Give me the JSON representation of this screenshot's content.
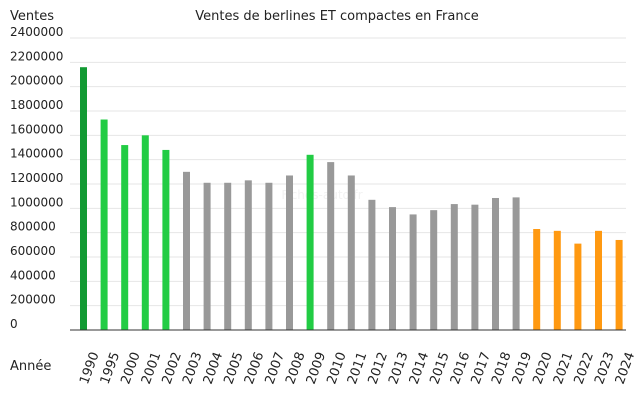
{
  "chart_data": {
    "type": "bar",
    "title": "Ventes de berlines ET compactes en France",
    "ylabel": "Ventes",
    "xlabel": "Année",
    "watermark": "Fiches-auto.fr",
    "ylim": [
      0,
      2400000
    ],
    "yticks": [
      "0",
      "200000",
      "400000",
      "600000",
      "800000",
      "1000000",
      "1200000",
      "1400000",
      "1600000",
      "1800000",
      "2000000",
      "2200000",
      "2400000"
    ],
    "grid": true,
    "legend": "none",
    "categories": [
      "1990",
      "1995",
      "2000",
      "2001",
      "2002",
      "2003",
      "2004",
      "2005",
      "2006",
      "2007",
      "2008",
      "2009",
      "2010",
      "2011",
      "2012",
      "2013",
      "2014",
      "2015",
      "2016",
      "2017",
      "2018",
      "2019",
      "2020",
      "2021",
      "2022",
      "2023",
      "2024"
    ],
    "values": [
      2160000,
      1730000,
      1520000,
      1600000,
      1480000,
      1300000,
      1210000,
      1210000,
      1230000,
      1210000,
      1270000,
      1440000,
      1380000,
      1270000,
      1070000,
      1010000,
      950000,
      985000,
      1035000,
      1030000,
      1085000,
      1090000,
      830000,
      815000,
      710000,
      815000,
      740000
    ],
    "bar_colors": [
      "#129a33",
      "#22cc44",
      "#22cc44",
      "#22cc44",
      "#22cc44",
      "#999999",
      "#999999",
      "#999999",
      "#999999",
      "#999999",
      "#999999",
      "#22cc44",
      "#999999",
      "#999999",
      "#999999",
      "#999999",
      "#999999",
      "#999999",
      "#999999",
      "#999999",
      "#999999",
      "#999999",
      "#ff9911",
      "#ff9911",
      "#ff9911",
      "#ff9911",
      "#ff9911"
    ]
  }
}
